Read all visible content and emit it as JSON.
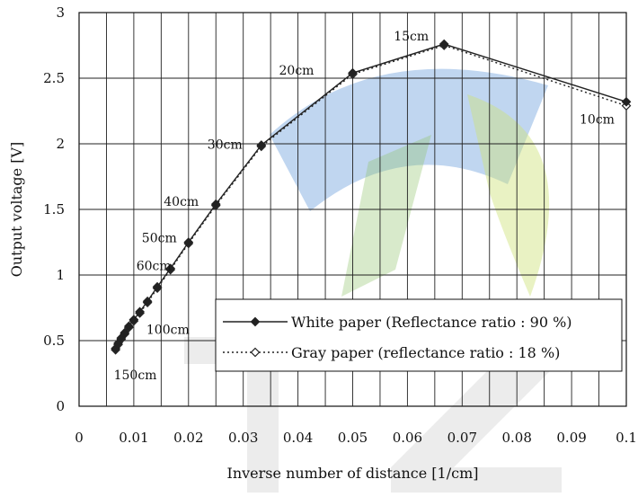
{
  "chart_data": {
    "type": "line",
    "title": "",
    "xlabel": "Inverse number of distance [1/cm]",
    "ylabel": "Output voltage [V]",
    "xlim": [
      0,
      0.1
    ],
    "ylim": [
      0,
      3
    ],
    "x_ticks": [
      "0",
      "0.01",
      "0.02",
      "0.03",
      "0.04",
      "0.05",
      "0.06",
      "0.07",
      "0.08",
      "0.09",
      "0.1"
    ],
    "y_ticks": [
      "0",
      "0.5",
      "1",
      "1.5",
      "2",
      "2.5",
      "3"
    ],
    "grid": true,
    "legend_position": "bottom-right",
    "series": [
      {
        "name": "White paper (Reflectance ratio : 90 %)",
        "style": "solid",
        "marker": "filled-diamond",
        "color": "#222222",
        "x": [
          0.00667,
          0.00714,
          0.00769,
          0.00833,
          0.00909,
          0.01,
          0.0111,
          0.0125,
          0.0143,
          0.0167,
          0.02,
          0.025,
          0.0333,
          0.05,
          0.0667,
          0.1
        ],
        "y": [
          0.44,
          0.48,
          0.52,
          0.56,
          0.61,
          0.66,
          0.72,
          0.8,
          0.91,
          1.05,
          1.25,
          1.54,
          1.99,
          2.54,
          2.76,
          2.32
        ]
      },
      {
        "name": "Gray paper (reflectance ratio : 18 %)",
        "style": "dotted",
        "marker": "open-diamond",
        "color": "#222222",
        "x": [
          0.00667,
          0.00714,
          0.00769,
          0.00833,
          0.00909,
          0.01,
          0.0111,
          0.0125,
          0.0143,
          0.0167,
          0.02,
          0.025,
          0.0333,
          0.05,
          0.0667,
          0.1
        ],
        "y": [
          0.43,
          0.47,
          0.51,
          0.55,
          0.6,
          0.65,
          0.71,
          0.79,
          0.9,
          1.04,
          1.24,
          1.53,
          1.98,
          2.53,
          2.75,
          2.29
        ]
      }
    ],
    "annotations": [
      {
        "text": "150cm",
        "x": 0.00667,
        "y": 0.44
      },
      {
        "text": "100cm",
        "x": 0.01,
        "y": 0.66
      },
      {
        "text": "60cm",
        "x": 0.0167,
        "y": 1.05
      },
      {
        "text": "50cm",
        "x": 0.02,
        "y": 1.25
      },
      {
        "text": "40cm",
        "x": 0.025,
        "y": 1.54
      },
      {
        "text": "30cm",
        "x": 0.0333,
        "y": 1.99
      },
      {
        "text": "20cm",
        "x": 0.05,
        "y": 2.54
      },
      {
        "text": "15cm",
        "x": 0.0667,
        "y": 2.76
      },
      {
        "text": "10cm",
        "x": 0.1,
        "y": 2.32
      }
    ]
  }
}
